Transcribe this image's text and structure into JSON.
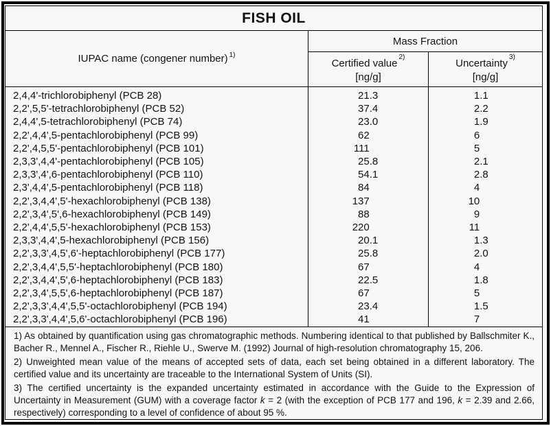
{
  "title": "FISH OIL",
  "table": {
    "columns": {
      "iupac": {
        "label": "IUPAC name (congener number)",
        "sup": "1)"
      },
      "group": "Mass Fraction",
      "certified": {
        "label": "Certified value",
        "sup": "2)",
        "unit": "[ng/g]"
      },
      "uncertainty": {
        "label": "Uncertainty",
        "sup": "3)",
        "unit": "[ng/g]"
      }
    },
    "rows": [
      {
        "name": "2,4,4'-trichlorobiphenyl (PCB 28)",
        "certified": "21.3",
        "uncertainty": "1.1"
      },
      {
        "name": "2,2',5,5'-tetrachlorobiphenyl (PCB 52)",
        "certified": "37.4",
        "uncertainty": "2.2"
      },
      {
        "name": "2,4,4',5-tetrachlorobiphenyl (PCB 74)",
        "certified": "23.0",
        "uncertainty": "1.9"
      },
      {
        "name": "2,2',4,4',5-pentachlorobiphenyl (PCB 99)",
        "certified": "62",
        "uncertainty": "6"
      },
      {
        "name": "2,2',4,5,5'-pentachlorobiphenyl (PCB 101)",
        "certified": "111",
        "uncertainty": "5"
      },
      {
        "name": "2,3,3',4,4'-pentachlorobiphenyl (PCB 105)",
        "certified": "25.8",
        "uncertainty": "2.1"
      },
      {
        "name": "2,3,3',4',6-pentachlorobiphenyl (PCB 110)",
        "certified": "54.1",
        "uncertainty": "2.8"
      },
      {
        "name": "2,3',4,4',5-pentachlorobiphenyl (PCB 118)",
        "certified": "84",
        "uncertainty": "4"
      },
      {
        "name": "2,2',3,4,4',5'-hexachlorobiphenyl (PCB 138)",
        "certified": "137",
        "uncertainty": "10"
      },
      {
        "name": "2,2',3,4',5',6-hexachlorobiphenyl (PCB 149)",
        "certified": "88",
        "uncertainty": "9"
      },
      {
        "name": "2,2',4,4',5,5'-hexachlorobiphenyl (PCB 153)",
        "certified": "220",
        "uncertainty": "11"
      },
      {
        "name": "2,3,3',4,4',5-hexachlorobiphenyl (PCB 156)",
        "certified": "20.1",
        "uncertainty": "1.3"
      },
      {
        "name": "2,2',3,3',4,5',6'-heptachlorobiphenyl (PCB 177)",
        "certified": "25.8",
        "uncertainty": "2.0"
      },
      {
        "name": "2,2',3,4,4',5,5'-heptachlorobiphenyl (PCB 180)",
        "certified": "67",
        "uncertainty": "4"
      },
      {
        "name": "2,2',3,4,4',5',6-heptachlorobiphenyl (PCB 183)",
        "certified": "22.5",
        "uncertainty": "1.8"
      },
      {
        "name": "2,2',3,4',5,5',6-heptachlorobiphenyl (PCB 187)",
        "certified": "67",
        "uncertainty": "5"
      },
      {
        "name": "2,2',3,3',4,4',5,5'-octachlorobiphenyl (PCB 194)",
        "certified": "23.4",
        "uncertainty": "1.5"
      },
      {
        "name": "2,2',3,3',4,4',5,6'-octachlorobiphenyl (PCB 196)",
        "certified": "41",
        "uncertainty": "7"
      }
    ]
  },
  "footnotes": [
    {
      "segments": [
        {
          "t": "1) As obtained by quantification using gas chromatographic methods. Numbering identical to that published by Ballschmiter K., Bacher R., Mennel A., Fischer R., Riehle U., Swerve M. (1992) Journal of high-resolution chromatography 15, 206."
        }
      ]
    },
    {
      "segments": [
        {
          "t": "2) Unweighted mean value of the means of accepted sets of data, each set being obtained in a different laboratory. The certified value and its uncertainty are traceable to the International System of Units (SI)."
        }
      ]
    },
    {
      "segments": [
        {
          "t": "3) The certified uncertainty is the expanded uncertainty estimated in accordance with the Guide to the Expression of Uncertainty in Measurement (GUM) with a coverage factor "
        },
        {
          "t": "k",
          "i": true
        },
        {
          "t": " = 2 (with the exception of PCB 177 and 196, "
        },
        {
          "t": "k",
          "i": true
        },
        {
          "t": " = 2.39 and 2.66, respectively) corresponding to a level of confidence of about 95 %."
        }
      ]
    }
  ],
  "colors": {
    "border": "#000000",
    "paper": "#f8f8f8",
    "text": "#121212"
  }
}
